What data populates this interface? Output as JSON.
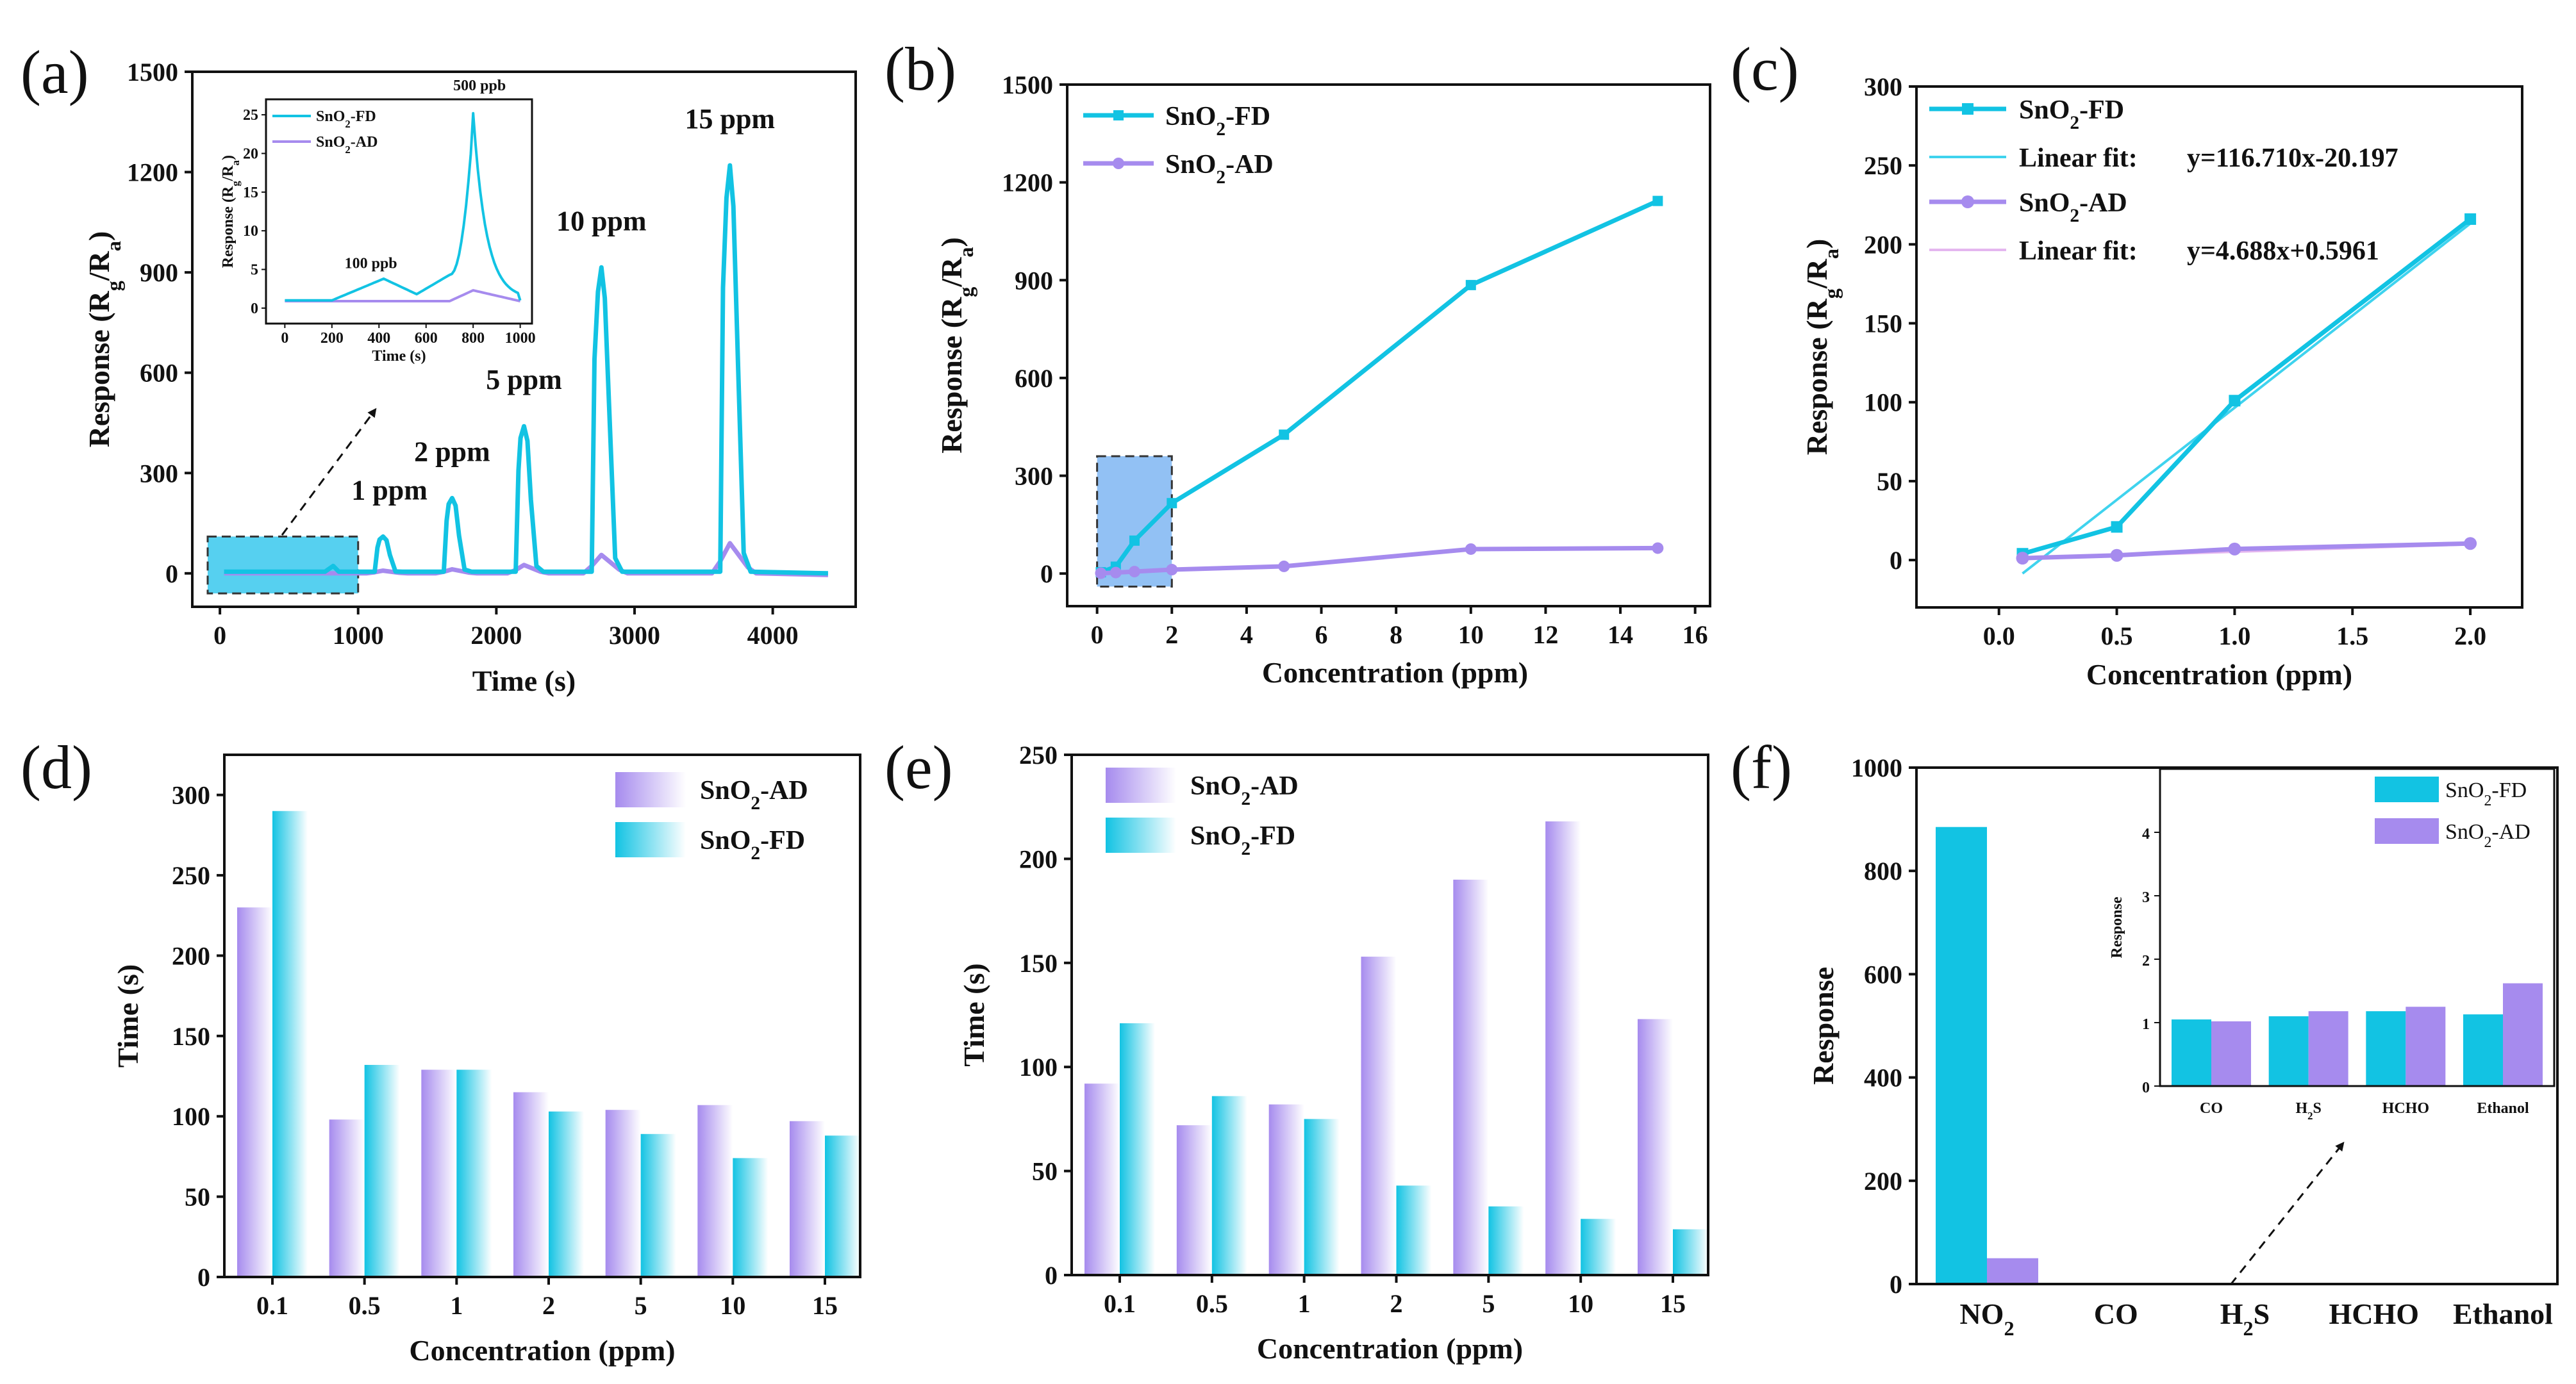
{
  "colors": {
    "fd": "#12C3E3",
    "ad": "#A68BEE",
    "box": "#7FB7F3",
    "boxa": "#39C8EE"
  },
  "chart_data": [
    {
      "panel": "(a)",
      "type": "line",
      "xlabel": "Time (s)",
      "ylabel": "Response (R",
      "ylabel_sub1": "g",
      "ylabel_mid": "/R",
      "ylabel_sub2": "a",
      "ylabel_end": ")",
      "xlim": [
        -200,
        4600
      ],
      "ylim": [
        -100,
        1500
      ],
      "xticks": [
        0,
        1000,
        2000,
        3000,
        4000
      ],
      "yticks": [
        0,
        300,
        600,
        900,
        1200,
        1500
      ],
      "peaks": [
        {
          "label": "1 ppm",
          "t": 1180,
          "fd": 110,
          "ad": 8
        },
        {
          "label": "2 ppm",
          "t": 1680,
          "fd": 225,
          "ad": 12
        },
        {
          "label": "5 ppm",
          "t": 2200,
          "fd": 440,
          "ad": 25
        },
        {
          "label": "10 ppm",
          "t": 2760,
          "fd": 915,
          "ad": 55
        },
        {
          "label": "15 ppm",
          "t": 3690,
          "fd": 1220,
          "ad": 90
        }
      ],
      "inset": {
        "series": [
          {
            "name": "SnO",
            "sub": "2",
            "suffix": "-FD"
          },
          {
            "name": "SnO",
            "sub": "2",
            "suffix": "-AD"
          }
        ],
        "xlabel": "Time (s)",
        "ylabel": "Response (R",
        "ylabel_sub1": "g",
        "ylabel_mid": "/R",
        "ylabel_sub2": "a",
        "ylabel_end": ")",
        "xlim": [
          -80,
          1050
        ],
        "ylim": [
          -2,
          27
        ],
        "xticks": [
          0,
          200,
          400,
          600,
          800,
          1000
        ],
        "yticks": [
          0,
          5,
          10,
          15,
          20,
          25
        ],
        "annotations": [
          {
            "text": "100 ppb",
            "t": 420,
            "v": 4
          },
          {
            "text": "500 ppb",
            "t": 800,
            "v": 24
          }
        ]
      }
    },
    {
      "panel": "(b)",
      "type": "line",
      "xlabel": "Concentration (ppm)",
      "ylabel": "Response (R",
      "ylabel_sub1": "g",
      "ylabel_mid": "/R",
      "ylabel_sub2": "a",
      "ylabel_end": ")",
      "xlim": [
        -0.8,
        16.4
      ],
      "ylim": [
        -100,
        1500
      ],
      "xticks": [
        0,
        2,
        4,
        6,
        8,
        10,
        12,
        14,
        16
      ],
      "yticks": [
        0,
        300,
        600,
        900,
        1200,
        1500
      ],
      "x": [
        0.1,
        0.5,
        1,
        2,
        5,
        10,
        15
      ],
      "series": [
        {
          "name": "SnO",
          "sub": "2",
          "suffix": "-FD",
          "values": [
            4,
            21,
            101,
            216,
            426,
            885,
            1143
          ]
        },
        {
          "name": "SnO",
          "sub": "2",
          "suffix": "-AD",
          "values": [
            1,
            3,
            6,
            12,
            22,
            75,
            78
          ]
        }
      ]
    },
    {
      "panel": "(c)",
      "type": "line",
      "xlabel": "Concentration (ppm)",
      "ylabel": "Response (R",
      "ylabel_sub1": "g",
      "ylabel_mid": "/R",
      "ylabel_sub2": "a",
      "ylabel_end": ")",
      "xlim": [
        -0.35,
        2.22
      ],
      "ylim": [
        -30,
        300
      ],
      "xticks": [
        0.0,
        0.5,
        1.0,
        1.5,
        2.0
      ],
      "yticks": [
        0,
        50,
        100,
        150,
        200,
        250,
        300
      ],
      "x": [
        0.1,
        0.5,
        1,
        2
      ],
      "series": [
        {
          "name": "SnO",
          "sub": "2",
          "suffix": "-FD",
          "values": [
            4,
            21,
            101,
            216
          ]
        },
        {
          "name": "SnO",
          "sub": "2",
          "suffix": "-AD",
          "values": [
            1.2,
            3,
            7,
            10.5
          ]
        }
      ],
      "fits": [
        {
          "label": "Linear fit:",
          "eq": "y=116.710x-20.197",
          "slope": 116.71,
          "intercept": -20.197
        },
        {
          "label": "Linear fit:",
          "eq": "y=4.688x+0.5961",
          "slope": 4.688,
          "intercept": 0.5961
        }
      ]
    },
    {
      "panel": "(d)",
      "type": "bar",
      "xlabel": "Concentration (ppm)",
      "ylabel": "Time (s)",
      "ylim": [
        0,
        325
      ],
      "yticks": [
        0,
        50,
        100,
        150,
        200,
        250,
        300
      ],
      "categories": [
        "0.1",
        "0.5",
        "1",
        "2",
        "5",
        "10",
        "15"
      ],
      "series": [
        {
          "name": "SnO",
          "sub": "2",
          "suffix": "-AD",
          "values": [
            230,
            98,
            129,
            115,
            104,
            107,
            97
          ]
        },
        {
          "name": "SnO",
          "sub": "2",
          "suffix": "-FD",
          "values": [
            290,
            132,
            129,
            103,
            89,
            74,
            88
          ]
        }
      ]
    },
    {
      "panel": "(e)",
      "type": "bar",
      "xlabel": "Concentration (ppm)",
      "ylabel": "Time (s)",
      "ylim": [
        0,
        250
      ],
      "yticks": [
        0,
        50,
        100,
        150,
        200,
        250
      ],
      "categories": [
        "0.1",
        "0.5",
        "1",
        "2",
        "5",
        "10",
        "15"
      ],
      "series": [
        {
          "name": "SnO",
          "sub": "2",
          "suffix": "-AD",
          "values": [
            92,
            72,
            82,
            153,
            190,
            218,
            123
          ]
        },
        {
          "name": "SnO",
          "sub": "2",
          "suffix": "-FD",
          "values": [
            121,
            86,
            75,
            43,
            33,
            27,
            22
          ]
        }
      ]
    },
    {
      "panel": "(f)",
      "type": "bar",
      "xlabel": "",
      "ylabel": "Response",
      "ylim": [
        0,
        1000
      ],
      "yticks": [
        0,
        200,
        400,
        600,
        800,
        1000
      ],
      "categories": [
        {
          "name": "NO",
          "sub": "2"
        },
        {
          "name": "CO",
          "sub": ""
        },
        {
          "name": "H",
          "sub": "2",
          "suffix": "S"
        },
        {
          "name": "HCHO",
          "sub": ""
        },
        {
          "name": "Ethanol",
          "sub": ""
        }
      ],
      "series": [
        {
          "name": "SnO",
          "sub": "2",
          "suffix": "-FD",
          "values": [
            885,
            1.05,
            1.1,
            1.18,
            1.13
          ]
        },
        {
          "name": "SnO",
          "sub": "2",
          "suffix": "-AD",
          "values": [
            50,
            1.02,
            1.18,
            1.25,
            1.62
          ]
        }
      ],
      "inset": {
        "ylabel": "Response",
        "ylim": [
          0,
          5
        ],
        "yticks": [
          0,
          1,
          2,
          3,
          4
        ],
        "categories": [
          {
            "name": "CO",
            "sub": ""
          },
          {
            "name": "H",
            "sub": "2",
            "suffix": "S"
          },
          {
            "name": "HCHO",
            "sub": ""
          },
          {
            "name": "Ethanol",
            "sub": ""
          }
        ],
        "fd": [
          1.05,
          1.1,
          1.18,
          1.13
        ],
        "ad": [
          1.02,
          1.18,
          1.25,
          1.62
        ]
      }
    }
  ]
}
